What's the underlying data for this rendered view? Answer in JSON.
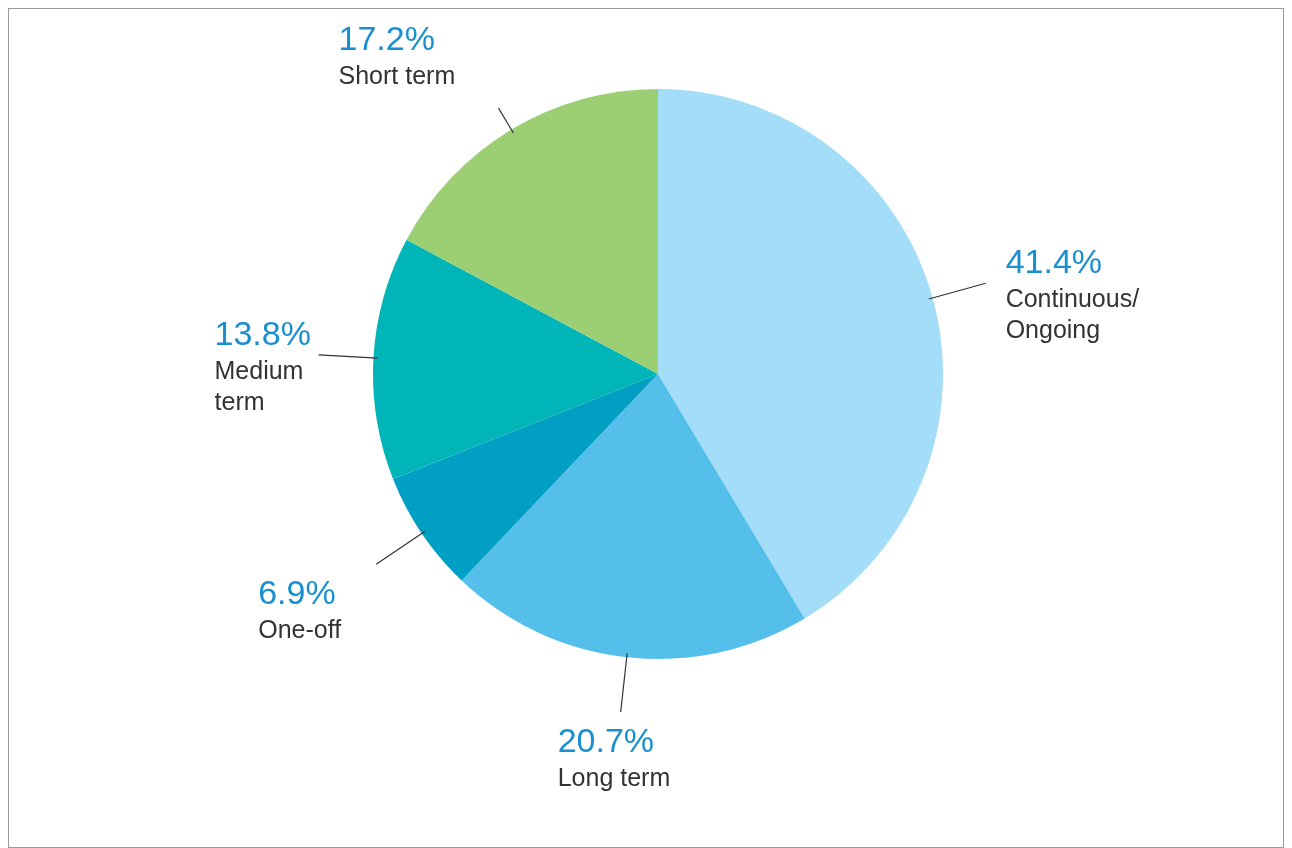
{
  "chart_data": {
    "type": "pie",
    "categories": [
      "Continuous/ Ongoing",
      "Long term",
      "One-off",
      "Medium term",
      "Short term"
    ],
    "values": [
      41.4,
      20.7,
      6.9,
      13.8,
      17.2
    ],
    "value_labels": [
      "41.4%",
      "20.7%",
      "6.9%",
      "13.8%",
      "17.2%"
    ],
    "colors": [
      "#a3ddf7",
      "#55bfec",
      "#019fc4",
      "#00b5b8",
      "#9ccf74"
    ]
  }
}
